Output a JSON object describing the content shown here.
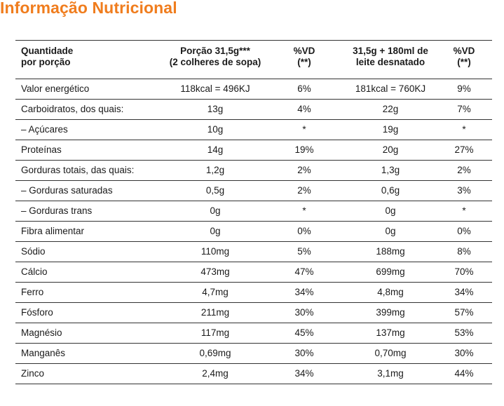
{
  "title": "Informação Nutricional",
  "colors": {
    "accent": "#f07d1e",
    "rule": "#333333"
  },
  "table": {
    "headers": [
      "Quantidade\npor porção",
      "Porção 31,5g***\n(2 colheres de sopa)",
      "%VD\n(**)",
      "31,5g + 180ml de\nleite desnatado",
      "%VD\n(**)"
    ],
    "rows": [
      [
        "Valor energético",
        "118kcal = 496KJ",
        "6%",
        "181kcal = 760KJ",
        "9%"
      ],
      [
        "Carboidratos, dos quais:",
        "13g",
        "4%",
        "22g",
        "7%"
      ],
      [
        "– Açúcares",
        "10g",
        "*",
        "19g",
        "*"
      ],
      [
        "Proteínas",
        "14g",
        "19%",
        "20g",
        "27%"
      ],
      [
        "Gorduras totais, das quais:",
        "1,2g",
        "2%",
        "1,3g",
        "2%"
      ],
      [
        "– Gorduras saturadas",
        "0,5g",
        "2%",
        "0,6g",
        "3%"
      ],
      [
        "– Gorduras trans",
        "0g",
        "*",
        "0g",
        "*"
      ],
      [
        "Fibra alimentar",
        "0g",
        "0%",
        "0g",
        "0%"
      ],
      [
        "Sódio",
        "110mg",
        "5%",
        "188mg",
        "8%"
      ],
      [
        "Cálcio",
        "473mg",
        "47%",
        "699mg",
        "70%"
      ],
      [
        "Ferro",
        "4,7mg",
        "34%",
        "4,8mg",
        "34%"
      ],
      [
        "Fósforo",
        "211mg",
        "30%",
        "399mg",
        "57%"
      ],
      [
        "Magnésio",
        "117mg",
        "45%",
        "137mg",
        "53%"
      ],
      [
        "Manganês",
        "0,69mg",
        "30%",
        "0,70mg",
        "30%"
      ],
      [
        "Zinco",
        "2,4mg",
        "34%",
        "3,1mg",
        "44%"
      ]
    ]
  }
}
